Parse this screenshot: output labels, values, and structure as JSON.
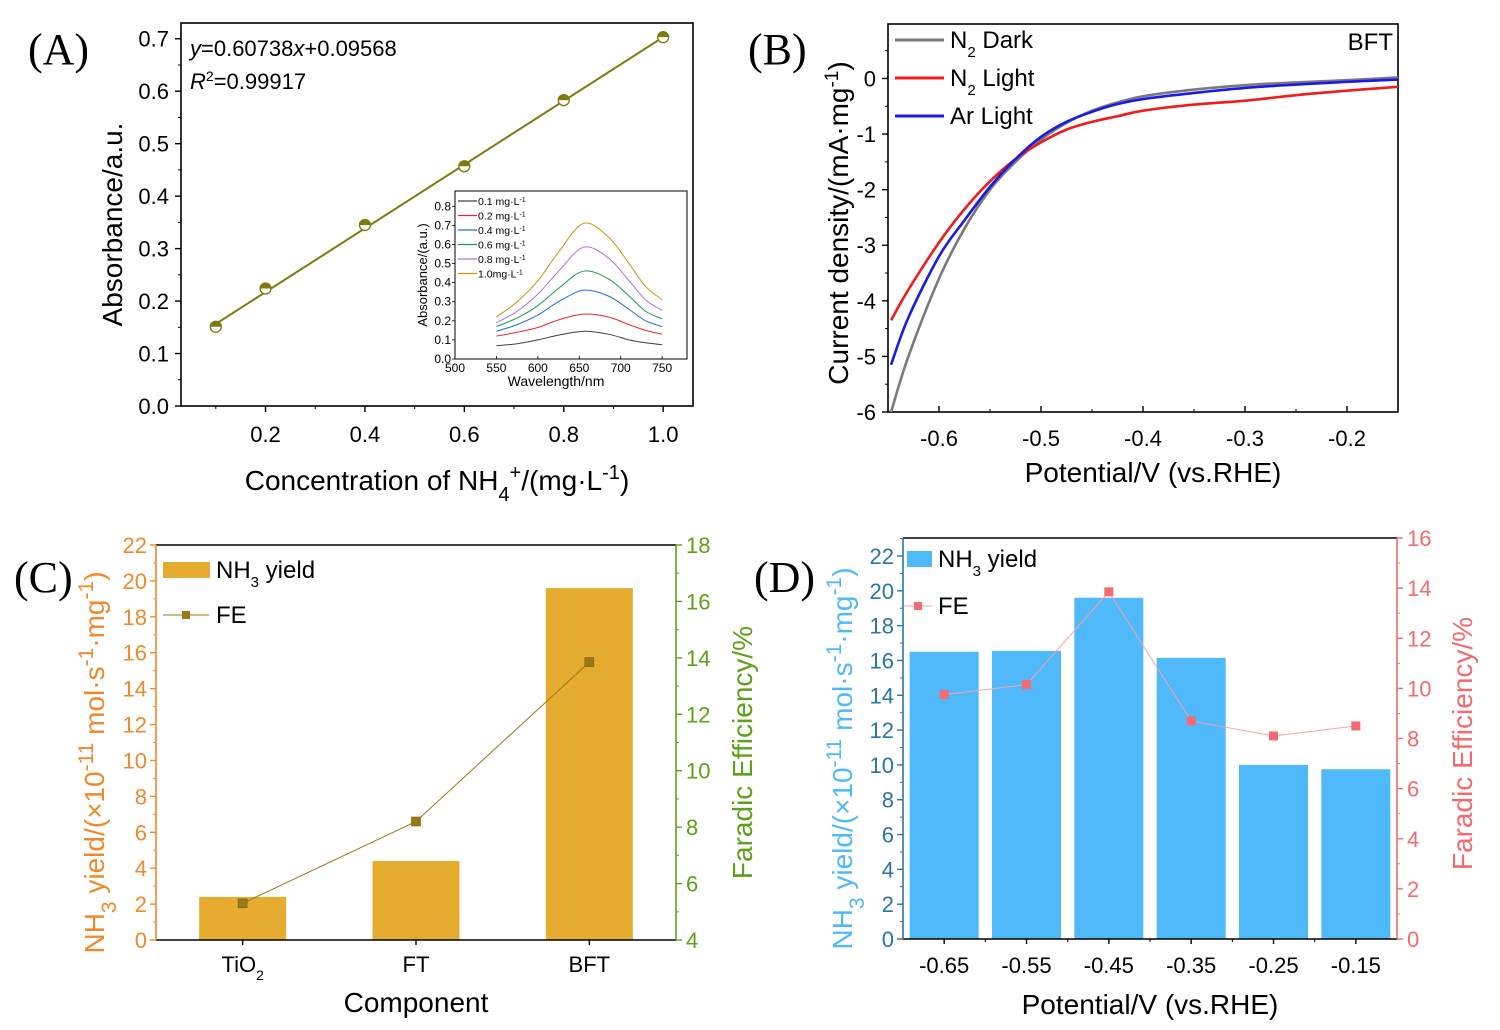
{
  "figure": {
    "panels": [
      "(A)",
      "(B)",
      "(C)",
      "(D)"
    ]
  },
  "chart_data": [
    {
      "id": "A",
      "type": "scatter",
      "title": "",
      "xlabel": "Concentration of NH4+/(mg·L-1)",
      "xlabel_parts": {
        "base": "Concentration of NH",
        "sub": "4",
        "sup": "+",
        "tail": "/(mg·L",
        "sup2": "-1",
        "end": ")"
      },
      "ylabel": "Absorbance/a.u.",
      "xlim": [
        0.03,
        1.06
      ],
      "ylim": [
        0.0,
        0.73
      ],
      "xticks": [
        0.2,
        0.4,
        0.6,
        0.8,
        1.0
      ],
      "xtick_labels": [
        "0.2",
        "0.4",
        "0.6",
        "0.8",
        "1.0"
      ],
      "yticks": [
        0.0,
        0.1,
        0.2,
        0.3,
        0.4,
        0.5,
        0.6,
        0.7
      ],
      "ytick_labels": [
        "0.0",
        "0.1",
        "0.2",
        "0.3",
        "0.4",
        "0.5",
        "0.6",
        "0.7"
      ],
      "x": [
        0.1,
        0.2,
        0.4,
        0.6,
        0.8,
        1.0
      ],
      "y": [
        0.151,
        0.224,
        0.345,
        0.457,
        0.583,
        0.703
      ],
      "fit": {
        "slope": 0.60738,
        "intercept": 0.09568,
        "r2": 0.99917
      },
      "annotations": {
        "equation_y": "y",
        "equation_rest": "=0.60738",
        "equation_x": "x",
        "equation_tail": "+0.09568",
        "r2_label": "R",
        "r2_sup": "2",
        "r2_value": "=0.99917"
      },
      "color": "#7d7a0f",
      "grid": false,
      "inset": {
        "type": "line",
        "xlabel": "Wavelength/nm",
        "ylabel": "Absorbance/(a.u.)",
        "xlim": [
          500,
          780
        ],
        "ylim": [
          0.0,
          0.88
        ],
        "xticks": [
          500,
          550,
          600,
          650,
          700,
          750
        ],
        "xtick_labels": [
          "500",
          "550",
          "600",
          "650",
          "700",
          "750"
        ],
        "yticks": [
          0.0,
          0.1,
          0.2,
          0.3,
          0.4,
          0.5,
          0.6,
          0.7,
          0.8
        ],
        "ytick_labels": [
          "0.0",
          "0.1",
          "0.2",
          "0.3",
          "0.4",
          "0.5",
          "0.6",
          "0.7",
          "0.8"
        ],
        "x": [
          550,
          575,
          600,
          625,
          655,
          685,
          710,
          730,
          750
        ],
        "series": [
          {
            "name": "0.1 mg·L-1",
            "label": "0.1 mg·L",
            "sup": "-1",
            "color": "#404040",
            "values": [
              0.07,
              0.08,
              0.1,
              0.125,
              0.145,
              0.13,
              0.1,
              0.085,
              0.075
            ]
          },
          {
            "name": "0.2 mg·L-1",
            "label": "0.2 mg·L",
            "sup": "-1",
            "color": "#e8292b",
            "values": [
              0.12,
              0.14,
              0.165,
              0.205,
              0.235,
              0.22,
              0.18,
              0.15,
              0.13
            ]
          },
          {
            "name": "0.4 mg·L-1",
            "label": "0.4 mg·L",
            "sup": "-1",
            "color": "#1f6fe0",
            "values": [
              0.145,
              0.18,
              0.23,
              0.3,
              0.36,
              0.33,
              0.26,
              0.2,
              0.17
            ]
          },
          {
            "name": "0.6 mg·L-1",
            "label": "0.6 mg·L",
            "sup": "-1",
            "color": "#1a9a55",
            "values": [
              0.17,
              0.215,
              0.28,
              0.37,
              0.46,
              0.42,
              0.33,
              0.25,
              0.21
            ]
          },
          {
            "name": "0.8 mg·L-1",
            "label": "0.8 mg·L",
            "sup": "-1",
            "color": "#b070e0",
            "values": [
              0.19,
              0.25,
              0.34,
              0.46,
              0.585,
              0.53,
              0.41,
              0.31,
              0.255
            ]
          },
          {
            "name": "1.0 mg·L-1",
            "label": "1.0mg·L",
            "sup": "-1",
            "color": "#c8950a",
            "values": [
              0.22,
              0.3,
              0.41,
              0.56,
              0.71,
              0.64,
              0.5,
              0.38,
              0.31
            ]
          }
        ]
      }
    },
    {
      "id": "B",
      "type": "line",
      "title": "",
      "annotation": "BFT",
      "xlabel": "Potential/V (vs.RHE)",
      "ylabel": "Current density/(mA·mg-1)",
      "ylabel_parts": {
        "base": "Current density/(mA·mg",
        "sup": "-1",
        "end": ")"
      },
      "xlim": [
        -0.65,
        -0.15
      ],
      "ylim": [
        -6,
        1
      ],
      "xticks": [
        -0.6,
        -0.5,
        -0.4,
        -0.3,
        -0.2
      ],
      "xtick_labels": [
        "-0.6",
        "-0.5",
        "-0.4",
        "-0.3",
        "-0.2"
      ],
      "yticks": [
        -6,
        -5,
        -4,
        -3,
        -2,
        -1,
        0
      ],
      "ytick_labels": [
        "-6",
        "-5",
        "-4",
        "-3",
        "-2",
        "-1",
        "0"
      ],
      "x": [
        -0.647,
        -0.63,
        -0.6,
        -0.575,
        -0.55,
        -0.525,
        -0.5,
        -0.475,
        -0.45,
        -0.425,
        -0.4,
        -0.35,
        -0.3,
        -0.25,
        -0.2,
        -0.15
      ],
      "series": [
        {
          "name": "N2 Dark",
          "label": "N",
          "sub": "2",
          "tail": " Dark",
          "color": "#7a7a7a",
          "values": [
            -6.0,
            -5.0,
            -3.6,
            -2.7,
            -2.0,
            -1.5,
            -1.1,
            -0.8,
            -0.58,
            -0.43,
            -0.32,
            -0.2,
            -0.12,
            -0.07,
            -0.03,
            0.02
          ]
        },
        {
          "name": "N2 Light",
          "label": "N",
          "sub": "2",
          "tail": " Light",
          "color": "#ee1c1c",
          "values": [
            -4.35,
            -3.8,
            -2.95,
            -2.35,
            -1.85,
            -1.45,
            -1.15,
            -0.92,
            -0.78,
            -0.68,
            -0.58,
            -0.47,
            -0.4,
            -0.3,
            -0.22,
            -0.15
          ]
        },
        {
          "name": "Ar Light",
          "label": "Ar Light",
          "sub": "",
          "tail": "",
          "color": "#1a1ae6",
          "values": [
            -5.15,
            -4.3,
            -3.2,
            -2.55,
            -1.95,
            -1.45,
            -1.05,
            -0.78,
            -0.6,
            -0.46,
            -0.37,
            -0.26,
            -0.17,
            -0.11,
            -0.06,
            -0.02
          ]
        }
      ],
      "legend": "top-left",
      "grid": false
    },
    {
      "id": "C",
      "type": "bar",
      "title": "",
      "xlabel": "Component",
      "categories": [
        "TiO2",
        "FT",
        "BFT"
      ],
      "category_parts": [
        {
          "base": "TiO",
          "sub": "2"
        },
        {
          "base": "FT",
          "sub": ""
        },
        {
          "base": "BFT",
          "sub": ""
        }
      ],
      "ylabel_left": "NH3 yield/(×10-11 mol·s-1·mg-1)",
      "ylabel_right": "Faradic Efficiency/%",
      "ylim_left": [
        0,
        22
      ],
      "ylim_right": [
        4,
        18
      ],
      "yticks_left": [
        0,
        2,
        4,
        6,
        8,
        10,
        12,
        14,
        16,
        18,
        20,
        22
      ],
      "yticks_right": [
        4,
        6,
        8,
        10,
        12,
        14,
        16,
        18
      ],
      "series": [
        {
          "name": "NH3 yield",
          "axis": "left",
          "kind": "bar",
          "color": "#e5ac2f",
          "values": [
            2.4,
            4.4,
            19.6
          ]
        },
        {
          "name": "FE",
          "axis": "right",
          "kind": "line",
          "color": "#9a7a14",
          "values": [
            5.3,
            8.2,
            13.85
          ]
        }
      ],
      "axis_colors": {
        "left": "#f0892b",
        "right": "#5ea019"
      },
      "legend": "top-left",
      "legend_labels": [
        {
          "base": "NH",
          "sub": "3",
          "tail": " yield"
        },
        {
          "base": "FE",
          "sub": "",
          "tail": ""
        }
      ]
    },
    {
      "id": "D",
      "type": "bar",
      "title": "",
      "xlabel": "Potential/V (vs.RHE)",
      "categories": [
        "-0.65",
        "-0.55",
        "-0.45",
        "-0.35",
        "-0.25",
        "-0.15"
      ],
      "ylabel_left": "NH3 yield/(×10-11 mol·s-1·mg-1)",
      "ylabel_right": "Faradic Efficiency/%",
      "ylim_left": [
        0,
        23
      ],
      "ylim_right": [
        0,
        16
      ],
      "yticks_left": [
        0,
        2,
        4,
        6,
        8,
        10,
        12,
        14,
        16,
        18,
        20,
        22
      ],
      "yticks_right": [
        0,
        2,
        4,
        6,
        8,
        10,
        12,
        14,
        16
      ],
      "series": [
        {
          "name": "NH3 yield",
          "axis": "left",
          "kind": "bar",
          "color": "#4fb9fa",
          "values": [
            16.5,
            16.55,
            19.6,
            16.15,
            10.0,
            9.75
          ]
        },
        {
          "name": "FE",
          "axis": "right",
          "kind": "line",
          "color": "#f46a6f",
          "values": [
            9.75,
            10.15,
            13.85,
            8.7,
            8.1,
            8.5
          ]
        }
      ],
      "axis_colors": {
        "left": "#2b73a8",
        "left_title": "#4fb9fa",
        "right": "#f46a6f"
      },
      "legend": "top-left",
      "legend_labels": [
        {
          "base": "NH",
          "sub": "3",
          "tail": " yield"
        },
        {
          "base": "FE",
          "sub": "",
          "tail": ""
        }
      ]
    }
  ]
}
